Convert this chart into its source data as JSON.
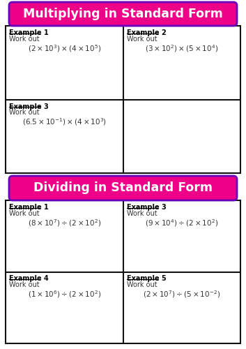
{
  "multiply_title": "Multiplying in Standard Form",
  "divide_title": "Dividing in Standard Form",
  "title_bg_color": "#EE0088",
  "title_border_color": "#6600BB",
  "title_text_color": "#FFFFFF",
  "multiply_cells": [
    {
      "label": "Example 1",
      "worktext": "Work out",
      "formula": "$(2 \\times 10^{3}) \\times (4 \\times 10^{5})$"
    },
    {
      "label": "Example 2",
      "worktext": "Work out",
      "formula": "$(3 \\times 10^{2}) \\times (5 \\times 10^{4})$"
    },
    {
      "label": "Example 3",
      "worktext": "Work out",
      "formula": "$(6.5 \\times 10^{-1}) \\times (4 \\times 10^{3})$"
    },
    {
      "label": "",
      "worktext": "",
      "formula": ""
    }
  ],
  "divide_cells": [
    {
      "label": "Example 1",
      "worktext": "Work out",
      "formula": "$(8 \\times 10^{7}) \\div (2 \\times 10^{2})$"
    },
    {
      "label": "Example 3",
      "worktext": "Work out",
      "formula": "$(9 \\times 10^{4}) \\div (2 \\times 10^{2})$"
    },
    {
      "label": "Example 4",
      "worktext": "Work out",
      "formula": "$(1 \\times 10^{6}) \\div (2 \\times 10^{2})$"
    },
    {
      "label": "Example 5",
      "worktext": "Work out",
      "formula": "$(2 \\times 10^{7}) \\div (5 \\times 10^{-2})$"
    }
  ],
  "border_color": "#111111",
  "bg_color": "#FFFFFF",
  "label_fontsize": 7.0,
  "work_fontsize": 7.0,
  "formula_fontsize": 7.5,
  "title_fontsize": 12.5
}
